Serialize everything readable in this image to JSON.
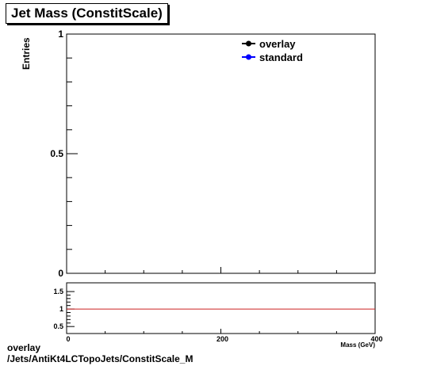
{
  "title": "Jet Mass (ConstitScale)",
  "footer": {
    "line1": "overlay",
    "line2": "/Jets/AntiKt4LCTopoJets/ConstitScale_M"
  },
  "chart_data": [
    {
      "type": "line",
      "title": "Jet Mass (ConstitScale)",
      "ylabel": "Entries",
      "xlabel": "Mass (GeV)",
      "xlim": [
        0,
        400
      ],
      "ylim": [
        0,
        1
      ],
      "yticks": [
        "0",
        "0.5",
        "1"
      ],
      "legend_position": "top-right",
      "series": [
        {
          "name": "overlay",
          "color": "#000000",
          "values": []
        },
        {
          "name": "standard",
          "color": "#0000ff",
          "values": []
        }
      ]
    },
    {
      "type": "line",
      "title": "",
      "xlabel": "Mass (GeV)",
      "xlim": [
        0,
        400
      ],
      "ylim": [
        0.3,
        1.75
      ],
      "xticks": [
        "0",
        "200",
        "400"
      ],
      "yticks": [
        "0.5",
        "1",
        "1.5"
      ],
      "reference_line": {
        "y": 1,
        "color": "#cc2222"
      }
    }
  ]
}
